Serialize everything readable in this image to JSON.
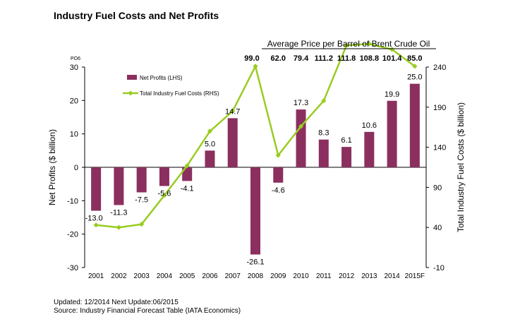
{
  "title": "Industry Fuel Costs and Net Profits",
  "footer": {
    "updated": "Updated:  12/2014  Next Update:06/2015",
    "source": "Source: Industry Financial Forecast Table (IATA Economics)"
  },
  "colors": {
    "bar": "#8b2f5f",
    "line": "#99cc22"
  },
  "chart_data": {
    "type": "bar+line",
    "corner_label": "PO6",
    "categories": [
      "2001",
      "2002",
      "2003",
      "2004",
      "2005",
      "2006",
      "2007",
      "2008",
      "2009",
      "2010",
      "2011",
      "2012",
      "2013",
      "2014",
      "2015F"
    ],
    "series": [
      {
        "name": "Net Profits (LHS)",
        "type": "bar",
        "axis": "left",
        "values": [
          -13.0,
          -11.3,
          -7.5,
          -5.6,
          -4.1,
          5.0,
          14.7,
          -26.1,
          -4.6,
          17.3,
          8.3,
          6.1,
          10.6,
          19.9,
          25.0
        ],
        "labels": [
          "-13.0",
          "-11.3",
          "-7.5",
          "-5.6",
          "-4.1",
          "5.0",
          "14.7",
          "-26.1",
          "-4.6",
          "17.3",
          "8.3",
          "6.1",
          "10.6",
          "19.9",
          "25.0"
        ]
      },
      {
        "name": "Total Industry Fuel Costs (RHS)",
        "type": "line",
        "axis": "right",
        "values": [
          43,
          40,
          44,
          80,
          117,
          160,
          185,
          241,
          130,
          166,
          198,
          267,
          269,
          262,
          241
        ]
      }
    ],
    "y_left": {
      "label": "Net Profits ($ billion)",
      "min": -30,
      "max": 30,
      "ticks": [
        30,
        20,
        10,
        0,
        -10,
        -20,
        -30
      ]
    },
    "y_right": {
      "label": "Total Industry Fuel Costs ($ billion)",
      "min": -10,
      "max": 240,
      "ticks": [
        240,
        190,
        140,
        90,
        40,
        -10
      ]
    },
    "brent": {
      "heading": "Average Price per Barrel of Brent Crude Oil",
      "years": [
        "2008",
        "2009",
        "2010",
        "2011",
        "2012",
        "2013",
        "2014",
        "2015F"
      ],
      "values": [
        "99.0",
        "62.0",
        "79.4",
        "111.2",
        "111.8",
        "108.8",
        "101.4",
        "85.0"
      ]
    },
    "legend_position": "top-left"
  }
}
